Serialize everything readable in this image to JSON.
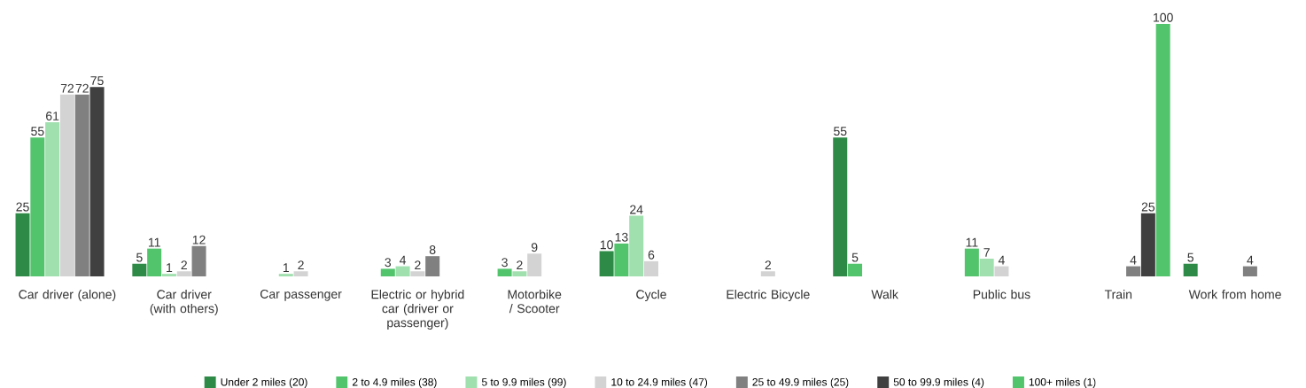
{
  "chart_data": {
    "type": "bar",
    "categories": [
      "Car driver (alone)",
      "Car driver (with others)",
      "Car passenger",
      "Electric or hybrid car (driver or passenger)",
      "Motorbike / Scooter",
      "Cycle",
      "Electric Bicycle",
      "Walk",
      "Public bus",
      "Train",
      "Work from home"
    ],
    "series": [
      {
        "name": "Under 2 miles (20)",
        "color": "#2e8b47",
        "values": [
          25,
          5,
          null,
          null,
          null,
          10,
          null,
          55,
          null,
          null,
          5
        ]
      },
      {
        "name": "2 to 4.9 miles (38)",
        "color": "#52c46c",
        "values": [
          55,
          11,
          null,
          3,
          3,
          13,
          null,
          5,
          11,
          null,
          null
        ]
      },
      {
        "name": "5 to 9.9 miles (99)",
        "color": "#a0dfae",
        "values": [
          61,
          1,
          1,
          4,
          2,
          24,
          null,
          null,
          7,
          null,
          null
        ]
      },
      {
        "name": "10 to 24.9 miles (47)",
        "color": "#d3d3d3",
        "values": [
          72,
          2,
          2,
          2,
          9,
          6,
          2,
          null,
          4,
          null,
          null
        ]
      },
      {
        "name": "25 to 49.9 miles (25)",
        "color": "#808080",
        "values": [
          72,
          12,
          null,
          8,
          null,
          null,
          null,
          null,
          null,
          4,
          4
        ]
      },
      {
        "name": "50 to 99.9 miles (4)",
        "color": "#404040",
        "values": [
          75,
          null,
          null,
          null,
          null,
          null,
          null,
          null,
          null,
          25,
          null
        ]
      },
      {
        "name": "100+ miles (1)",
        "color": "#52c46c",
        "values": [
          null,
          null,
          null,
          null,
          null,
          null,
          null,
          null,
          null,
          100,
          null
        ]
      }
    ],
    "data_labels": true,
    "legend": "bottom"
  }
}
